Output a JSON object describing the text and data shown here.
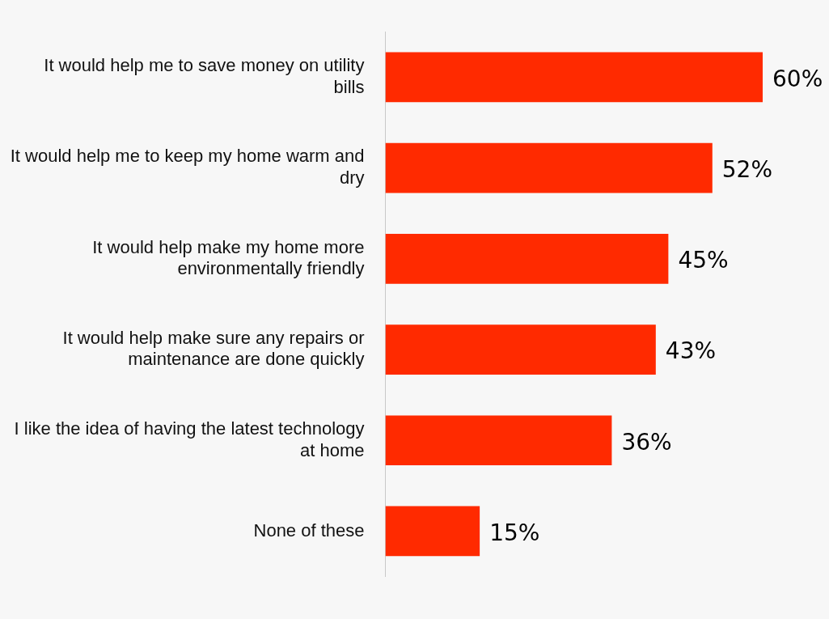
{
  "chart_data": {
    "type": "bar",
    "orientation": "horizontal",
    "categories": [
      "It would help me to save money on utility bills",
      "It would help me to keep my home warm and dry",
      "It would help make my home more environmentally friendly",
      "It would help make sure any repairs or maintenance are done quickly",
      "I like the idea of having the latest technology at home",
      "None of these"
    ],
    "values": [
      60,
      52,
      45,
      43,
      36,
      15
    ],
    "color": "#ff2a00",
    "value_labels": [
      "60%",
      "52%",
      "45%",
      "43%",
      "36%",
      "15%"
    ],
    "legend": false
  }
}
